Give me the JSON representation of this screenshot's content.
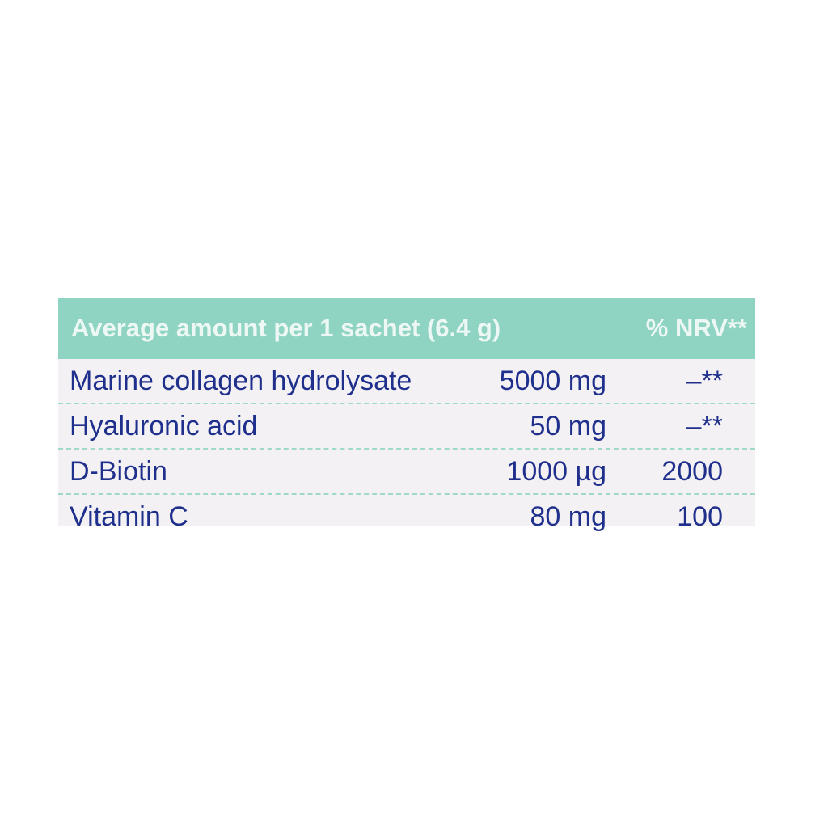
{
  "table": {
    "header": [
      "Average amount per 1 sachet (6.4 g)",
      "% NRV**"
    ],
    "rows": [
      [
        "Marine collagen hydrolysate",
        "5000 mg",
        "–**"
      ],
      [
        "Hyaluronic acid",
        "50 mg",
        "–**"
      ],
      [
        "D-Biotin",
        "1000 µg",
        "2000"
      ],
      [
        "Vitamin C",
        "80 mg",
        "100"
      ]
    ]
  }
}
